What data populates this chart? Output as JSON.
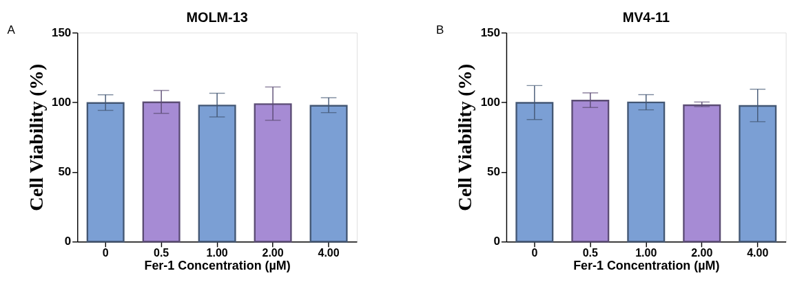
{
  "chart_data": [
    {
      "type": "bar",
      "title": "MOLM-13",
      "xlabel": "Fer-1 Concentration (µM)",
      "ylabel": "Cell Viability (%)",
      "annotations": [
        "A"
      ],
      "categories": [
        "0",
        "0.5",
        "1.00",
        "2.00",
        "4.00"
      ],
      "values": [
        99.5,
        100,
        97.7,
        98.7,
        97.5
      ],
      "colors": [
        "#7b9fd4",
        "#a68bd4",
        "#7b9fd4",
        "#a68bd4",
        "#7b9fd4"
      ],
      "errors": [
        [
          94.2,
          105.4
        ],
        [
          92.1,
          108.5
        ],
        [
          89.5,
          106.5
        ],
        [
          87.1,
          111
        ],
        [
          92.6,
          103.3
        ]
      ],
      "ylim": [
        0,
        150
      ],
      "yticks": [
        0,
        50,
        100,
        150
      ],
      "grid": false
    },
    {
      "type": "bar",
      "title": "MV4-11",
      "xlabel": "Fer-1 Concentration (µM)",
      "ylabel": "Cell Viability (%)",
      "annotations": [
        "B"
      ],
      "categories": [
        "0",
        "0.5",
        "1.00",
        "2.00",
        "4.00"
      ],
      "values": [
        99.6,
        101.2,
        99.9,
        97.9,
        97.4
      ],
      "colors": [
        "#7b9fd4",
        "#a68bd4",
        "#7b9fd4",
        "#a68bd4",
        "#7b9fd4"
      ],
      "errors": [
        [
          87.6,
          112
        ],
        [
          96.3,
          106.8
        ],
        [
          94.6,
          105.5
        ],
        [
          96.9,
          100.2
        ],
        [
          86.1,
          109.4
        ]
      ],
      "ylim": [
        0,
        150
      ],
      "yticks": [
        0,
        50,
        100,
        150
      ],
      "grid": false
    }
  ]
}
